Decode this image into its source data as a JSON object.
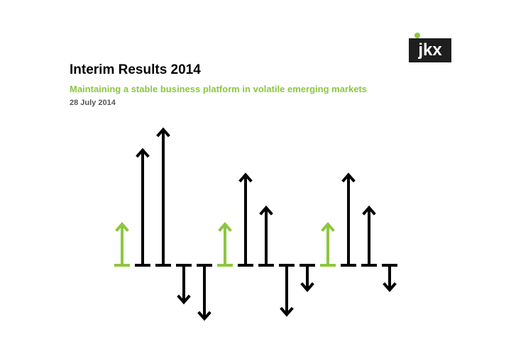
{
  "logo": {
    "text": "jkx",
    "box_color": "#1e1e1e",
    "dot_color": "#8dc63f"
  },
  "title": "Interim Results 2014",
  "subtitle": "Maintaining a stable business platform in volatile emerging markets",
  "date": "28 July 2014",
  "colors": {
    "accent_green": "#8dc63f",
    "title_black": "#000000",
    "date_gray": "#555555",
    "arrow_black": "#000000"
  },
  "arrows": [
    {
      "direction": "up",
      "magnitude": 2.0,
      "color": "green"
    },
    {
      "direction": "up",
      "magnitude": 5.6,
      "color": "black"
    },
    {
      "direction": "up",
      "magnitude": 6.6,
      "color": "black"
    },
    {
      "direction": "down",
      "magnitude": 1.8,
      "color": "black"
    },
    {
      "direction": "down",
      "magnitude": 2.6,
      "color": "black"
    },
    {
      "direction": "up",
      "magnitude": 2.0,
      "color": "green"
    },
    {
      "direction": "up",
      "magnitude": 4.4,
      "color": "black"
    },
    {
      "direction": "up",
      "magnitude": 2.8,
      "color": "black"
    },
    {
      "direction": "down",
      "magnitude": 2.4,
      "color": "black"
    },
    {
      "direction": "down",
      "magnitude": 1.2,
      "color": "black"
    },
    {
      "direction": "up",
      "magnitude": 2.0,
      "color": "green"
    },
    {
      "direction": "up",
      "magnitude": 4.4,
      "color": "black"
    },
    {
      "direction": "up",
      "magnitude": 2.8,
      "color": "black"
    },
    {
      "direction": "down",
      "magnitude": 1.2,
      "color": "black"
    }
  ]
}
